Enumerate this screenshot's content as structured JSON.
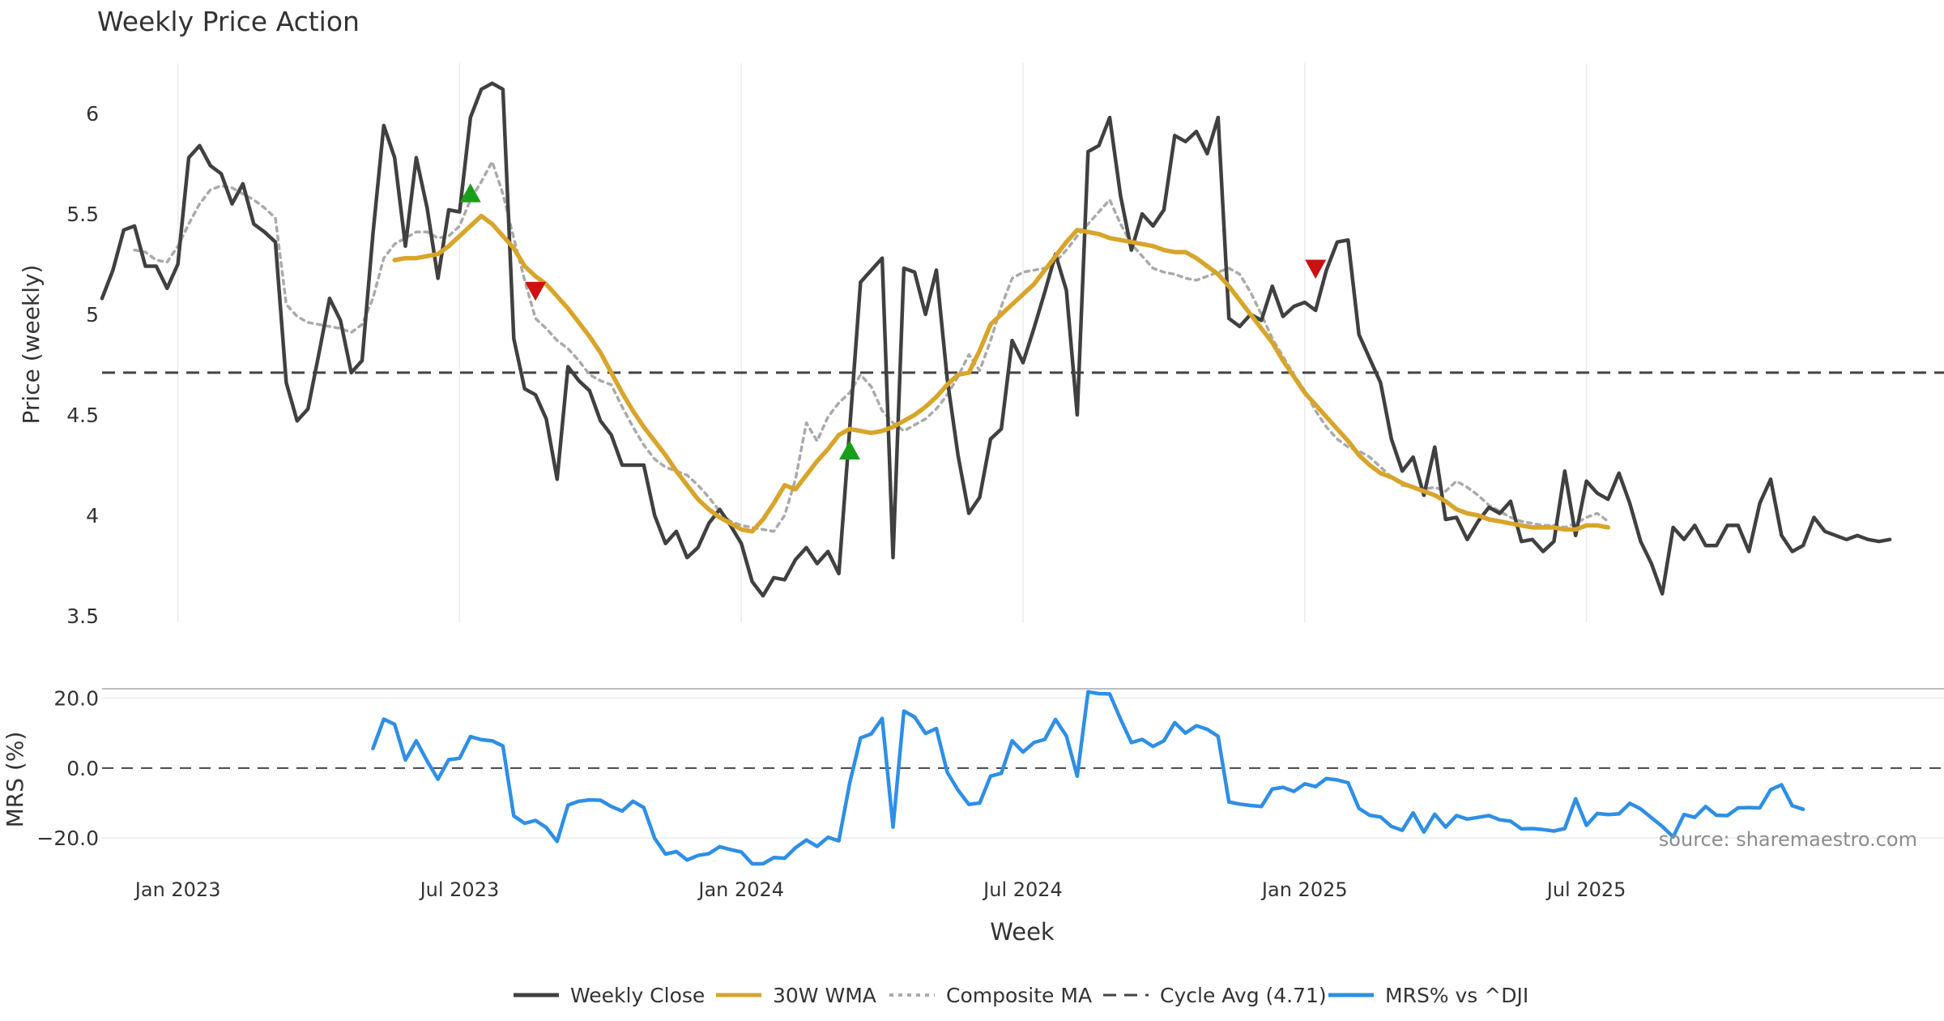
{
  "chart_data": [
    {
      "type": "line",
      "title": "Weekly Price Action",
      "xlabel": "",
      "ylabel": "Price (weekly)",
      "ylim": [
        3.5,
        6.25
      ],
      "yticks": [
        3.5,
        4,
        4.5,
        5,
        5.5,
        6
      ],
      "ytick_labels": [
        "3.5",
        "4",
        "4.5",
        "5",
        "5.5",
        "6"
      ],
      "x_range_weeks": [
        0,
        170
      ],
      "xticks": [
        {
          "week": 7,
          "label": "Jan 2023"
        },
        {
          "week": 33,
          "label": "Jul 2023"
        },
        {
          "week": 59,
          "label": "Jan 2024"
        },
        {
          "week": 85,
          "label": "Jul 2024"
        },
        {
          "week": 111,
          "label": "Jan 2025"
        },
        {
          "week": 137,
          "label": "Jul 2025"
        }
      ],
      "reference_line": {
        "name": "Cycle Avg (4.71)",
        "value": 4.71
      },
      "series": [
        {
          "name": "Weekly Close",
          "color": "#404040",
          "start_week": 0,
          "values": [
            5.08,
            5.22,
            5.42,
            5.44,
            5.24,
            5.24,
            5.13,
            5.25,
            5.78,
            5.84,
            5.74,
            5.7,
            5.55,
            5.65,
            5.45,
            5.41,
            5.36,
            4.66,
            4.47,
            4.53,
            4.8,
            5.08,
            4.97,
            4.71,
            4.77,
            5.4,
            5.94,
            5.78,
            5.34,
            5.78,
            5.53,
            5.18,
            5.52,
            5.51,
            5.98,
            6.12,
            6.15,
            6.12,
            4.88,
            4.63,
            4.6,
            4.48,
            4.18,
            4.74,
            4.67,
            4.62,
            4.47,
            4.4,
            4.25,
            4.25,
            4.25,
            4.0,
            3.86,
            3.92,
            3.79,
            3.84,
            3.96,
            4.03,
            3.95,
            3.86,
            3.67,
            3.6,
            3.69,
            3.68,
            3.78,
            3.84,
            3.76,
            3.82,
            3.71,
            4.43,
            5.16,
            5.22,
            5.28,
            3.79,
            5.23,
            5.21,
            5.0,
            5.22,
            4.68,
            4.3,
            4.01,
            4.09,
            4.38,
            4.43,
            4.87,
            4.76,
            4.93,
            5.11,
            5.3,
            5.12,
            4.5,
            5.81,
            5.84,
            5.98,
            5.59,
            5.32,
            5.5,
            5.44,
            5.52,
            5.89,
            5.86,
            5.91,
            5.8,
            5.98,
            4.98,
            4.94,
            5.0,
            4.97,
            5.14,
            4.99,
            5.04,
            5.06,
            5.02,
            5.22,
            5.36,
            5.37,
            4.9,
            4.78,
            4.66,
            4.38,
            4.22,
            4.29,
            4.1,
            4.34,
            3.98,
            3.99,
            3.88,
            3.97,
            4.04,
            4.01,
            4.07,
            3.87,
            3.88,
            3.82,
            3.87,
            4.22,
            3.9,
            4.17,
            4.11,
            4.08,
            4.21,
            4.06,
            3.87,
            3.76,
            3.61,
            3.94,
            3.88,
            3.95,
            3.85,
            3.85,
            3.95,
            3.95,
            3.82,
            4.06,
            4.18,
            3.9,
            3.82,
            3.85,
            3.99,
            3.92,
            3.9,
            3.88,
            3.9,
            3.88,
            3.87,
            3.88
          ]
        },
        {
          "name": "30W WMA",
          "color": "#D8A52B",
          "start_week": 27,
          "values": [
            5.27,
            5.28,
            5.28,
            5.29,
            5.3,
            5.34,
            5.39,
            5.44,
            5.49,
            5.45,
            5.39,
            5.33,
            5.24,
            5.19,
            5.15,
            5.09,
            5.03,
            4.96,
            4.89,
            4.81,
            4.71,
            4.61,
            4.52,
            4.44,
            4.37,
            4.3,
            4.22,
            4.15,
            4.08,
            4.03,
            3.99,
            3.96,
            3.93,
            3.92,
            3.98,
            4.06,
            4.15,
            4.13,
            4.2,
            4.27,
            4.33,
            4.4,
            4.43,
            4.42,
            4.41,
            4.42,
            4.44,
            4.47,
            4.5,
            4.54,
            4.59,
            4.65,
            4.7,
            4.71,
            4.82,
            4.95,
            5.0,
            5.05,
            5.1,
            5.15,
            5.22,
            5.29,
            5.36,
            5.42,
            5.41,
            5.4,
            5.38,
            5.37,
            5.36,
            5.35,
            5.34,
            5.32,
            5.31,
            5.31,
            5.28,
            5.24,
            5.2,
            5.14,
            5.07,
            5.0,
            4.93,
            4.86,
            4.77,
            4.69,
            4.61,
            4.55,
            4.49,
            4.43,
            4.37,
            4.3,
            4.25,
            4.21,
            4.19,
            4.16,
            4.14,
            4.12,
            4.1,
            4.07,
            4.03,
            4.01,
            4.0,
            3.98,
            3.97,
            3.96,
            3.95,
            3.94,
            3.94,
            3.94,
            3.93,
            3.93,
            3.95,
            3.95,
            3.94
          ]
        },
        {
          "name": "Composite MA",
          "color": "#aaaaaa",
          "start_week": 3,
          "values": [
            5.32,
            5.31,
            5.27,
            5.26,
            5.34,
            5.45,
            5.55,
            5.62,
            5.64,
            5.63,
            5.6,
            5.57,
            5.53,
            5.48,
            5.05,
            4.99,
            4.96,
            4.95,
            4.94,
            4.93,
            4.91,
            4.95,
            5.08,
            5.28,
            5.35,
            5.38,
            5.41,
            5.41,
            5.38,
            5.39,
            5.44,
            5.57,
            5.66,
            5.76,
            5.6,
            5.38,
            5.17,
            4.98,
            4.93,
            4.87,
            4.83,
            4.77,
            4.7,
            4.67,
            4.65,
            4.54,
            4.44,
            4.35,
            4.28,
            4.24,
            4.22,
            4.2,
            4.15,
            4.09,
            4.02,
            3.97,
            3.95,
            3.94,
            3.93,
            3.92,
            4.0,
            4.18,
            4.46,
            4.37,
            4.49,
            4.56,
            4.61,
            4.7,
            4.64,
            4.52,
            4.46,
            4.42,
            4.45,
            4.48,
            4.53,
            4.6,
            4.69,
            4.8,
            4.72,
            4.87,
            5.04,
            5.18,
            5.21,
            5.22,
            5.23,
            5.26,
            5.32,
            5.39,
            5.45,
            5.51,
            5.57,
            5.45,
            5.35,
            5.29,
            5.23,
            5.21,
            5.2,
            5.18,
            5.17,
            5.19,
            5.21,
            5.23,
            5.2,
            5.11,
            5.0,
            4.88,
            4.79,
            4.7,
            4.62,
            4.52,
            4.44,
            4.38,
            4.34,
            4.32,
            4.29,
            4.24,
            4.19,
            4.15,
            4.14,
            4.13,
            4.14,
            4.12,
            4.17,
            4.14,
            4.1,
            4.05,
            4.02,
            3.99,
            3.97,
            3.96,
            3.95,
            3.95,
            3.94,
            3.96,
            3.99,
            4.01,
            3.97
          ]
        }
      ],
      "annotations": [
        {
          "type": "buy",
          "marker": "triangle-up",
          "color": "#1a9e1a",
          "week": 34,
          "value": 5.6
        },
        {
          "type": "sell",
          "marker": "triangle-down",
          "color": "#cc1111",
          "week": 40,
          "value": 5.12
        },
        {
          "type": "buy",
          "marker": "triangle-up",
          "color": "#1a9e1a",
          "week": 69,
          "value": 4.32
        },
        {
          "type": "sell",
          "marker": "triangle-down",
          "color": "#cc1111",
          "week": 112,
          "value": 5.23
        }
      ]
    },
    {
      "type": "line",
      "title": "",
      "xlabel": "Week",
      "ylabel": "MRS (%)",
      "ylim": [
        -26,
        25
      ],
      "yticks": [
        -20,
        0,
        20
      ],
      "ytick_labels": [
        "−20.0",
        "0.0",
        "20.0"
      ],
      "reference_line": {
        "value": 0
      },
      "series": [
        {
          "name": "MRS% vs ^DJI",
          "color": "#2E8FE5",
          "start_week": 25,
          "values": [
            5.6,
            14.0,
            12.5,
            2.3,
            7.8,
            2.0,
            -3.2,
            2.4,
            2.8,
            9.0,
            8.1,
            7.8,
            6.3,
            -13.7,
            -15.8,
            -15.0,
            -17.0,
            -21.0,
            -10.6,
            -9.5,
            -9.1,
            -9.2,
            -11.0,
            -12.3,
            -9.5,
            -11.3,
            -20.1,
            -24.6,
            -23.9,
            -26.3,
            -25.0,
            -24.5,
            -22.5,
            -23.3,
            -24.0,
            -27.4,
            -27.4,
            -25.6,
            -25.8,
            -22.8,
            -20.6,
            -22.4,
            -19.8,
            -20.8,
            -4.3,
            8.6,
            9.8,
            14.2,
            -16.9,
            16.3,
            14.6,
            9.9,
            11.3,
            -1.2,
            -6.3,
            -10.4,
            -10.0,
            -2.3,
            -1.5,
            7.8,
            4.6,
            7.3,
            8.2,
            13.9,
            9.2,
            -2.3,
            21.8,
            21.3,
            21.2,
            14.0,
            7.3,
            8.2,
            6.2,
            7.8,
            13.0,
            10.0,
            12.1,
            11.1,
            9.1,
            -9.7,
            -10.3,
            -10.7,
            -11.0,
            -6.0,
            -5.5,
            -6.7,
            -4.5,
            -5.3,
            -3.0,
            -3.4,
            -4.2,
            -11.5,
            -13.5,
            -14.0,
            -16.7,
            -17.8,
            -12.8,
            -18.3,
            -13.2,
            -16.9,
            -13.6,
            -14.6,
            -14.1,
            -13.6,
            -14.8,
            -15.2,
            -17.4,
            -17.3,
            -17.6,
            -18.0,
            -17.3,
            -8.8,
            -16.4,
            -13.0,
            -13.3,
            -13.1,
            -10.1,
            -11.7,
            -14.2,
            -16.7,
            -19.7,
            -13.3,
            -14.1,
            -11.0,
            -13.5,
            -13.6,
            -11.4,
            -11.3,
            -11.4,
            -6.2,
            -4.8,
            -10.8,
            -11.8
          ]
        }
      ]
    }
  ],
  "source_text": "source: sharemaestro.com",
  "legend": [
    {
      "label": "Weekly Close",
      "style": "solid",
      "color": "#404040"
    },
    {
      "label": "30W WMA",
      "style": "solid",
      "color": "#D8A52B"
    },
    {
      "label": "Composite MA",
      "style": "dotted",
      "color": "#aaaaaa"
    },
    {
      "label": "Cycle Avg (4.71)",
      "style": "dashed",
      "color": "#444444"
    },
    {
      "label": "MRS% vs ^DJI",
      "style": "solid",
      "color": "#2E8FE5"
    }
  ]
}
